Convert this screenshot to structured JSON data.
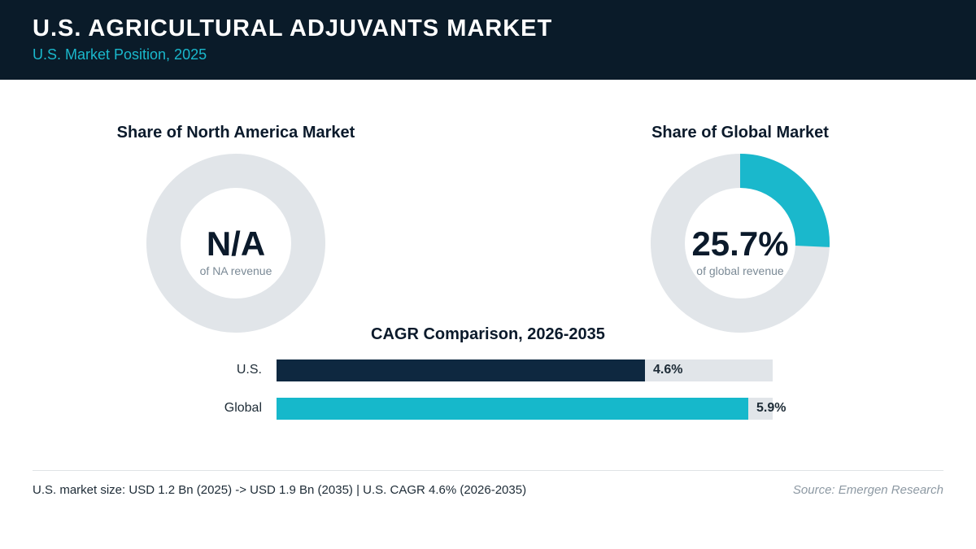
{
  "header": {
    "title": "U.S. AGRICULTURAL ADJUVANTS MARKET",
    "subtitle": "U.S. Market Position, 2025"
  },
  "colors": {
    "header_bg": "#0a1b29",
    "accent": "#1ab8cc",
    "us_bar": "#0e2840",
    "global_bar": "#16b8cb",
    "track": "#e1e5e9"
  },
  "chart_data": [
    {
      "type": "pie",
      "title": "Share of North America Market",
      "center_value": "N/A",
      "center_caption": "of NA revenue",
      "value": null
    },
    {
      "type": "pie",
      "title": "Share of Global Market",
      "center_value": "25.7%",
      "center_caption": "of global revenue",
      "value": 25.7
    },
    {
      "type": "bar",
      "orientation": "horizontal",
      "title": "CAGR Comparison, 2026-2035",
      "categories": [
        "U.S.",
        "Global"
      ],
      "values": [
        4.6,
        5.9
      ],
      "value_labels": [
        "4.6%",
        "5.9%"
      ],
      "xlim": [
        0,
        6.2
      ]
    }
  ],
  "footer": {
    "note": "U.S. market size: USD 1.2 Bn (2025) -> USD 1.9 Bn (2035)  |  U.S. CAGR 4.6% (2026-2035)",
    "source": "Source: Emergen Research"
  }
}
